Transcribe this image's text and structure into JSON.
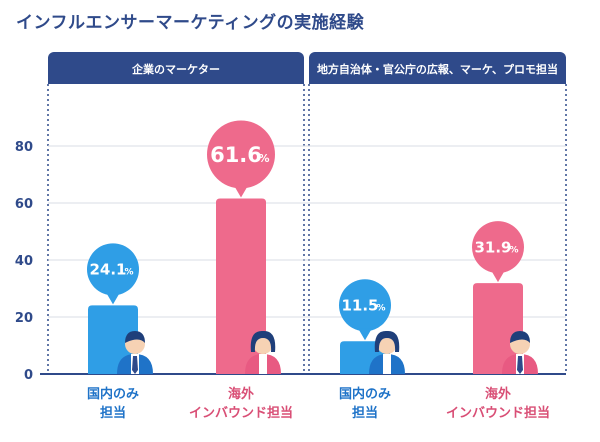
{
  "title": "インフルエンサーマーケティングの実施経験",
  "colors": {
    "header": "#2f4a8a",
    "blue_bar": "#2f9ee6",
    "blue_dark": "#1f73c8",
    "pink_bar": "#ee6a8c",
    "pink_dark": "#d94f76",
    "grid": "#d8dde6",
    "axis": "#2f4a8a"
  },
  "chart_data": {
    "type": "bar",
    "title": "インフルエンサーマーケティングの実施経験",
    "ylim": [
      0,
      80
    ],
    "yticks": [
      "0",
      "20",
      "40",
      "60",
      "80"
    ],
    "groups": [
      {
        "name": "企業のマーケター",
        "bars": [
          {
            "label_line1": "国内のみ",
            "label_line2": "担当",
            "value": 24.1,
            "value_text": "24.1",
            "unit": "%",
            "color": "blue",
            "figure": "male-icon"
          },
          {
            "label_line1": "海外",
            "label_line2": "インバウンド担当",
            "value": 61.6,
            "value_text": "61.6",
            "unit": "%",
            "color": "pink",
            "figure": "female-icon"
          }
        ]
      },
      {
        "name": "地方自治体・官公庁の広報、マーケ、プロモ担当",
        "bars": [
          {
            "label_line1": "国内のみ",
            "label_line2": "担当",
            "value": 11.5,
            "value_text": "11.5",
            "unit": "%",
            "color": "blue",
            "figure": "female-icon"
          },
          {
            "label_line1": "海外",
            "label_line2": "インバウンド担当",
            "value": 31.9,
            "value_text": "31.9",
            "unit": "%",
            "color": "pink",
            "figure": "male-icon"
          }
        ]
      }
    ]
  }
}
